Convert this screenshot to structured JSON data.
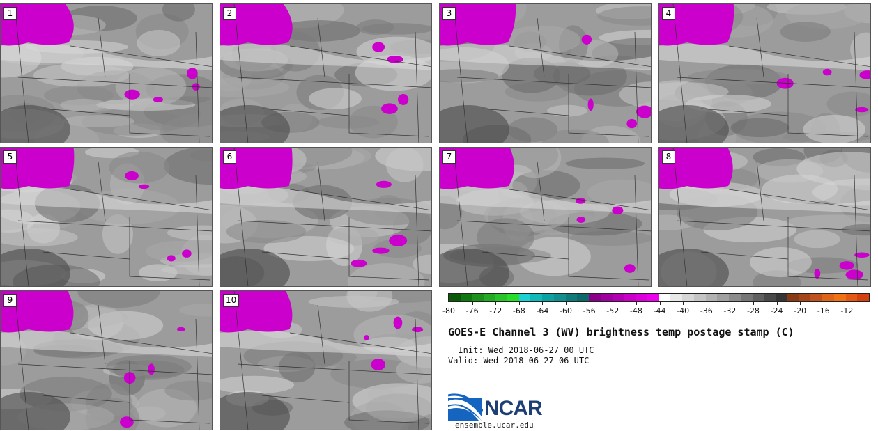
{
  "panels": [
    {
      "label": "1"
    },
    {
      "label": "2"
    },
    {
      "label": "3"
    },
    {
      "label": "4"
    },
    {
      "label": "5"
    },
    {
      "label": "6"
    },
    {
      "label": "7"
    },
    {
      "label": "8"
    },
    {
      "label": "9"
    },
    {
      "label": "10"
    }
  ],
  "colorbar": {
    "colors": [
      "#0a5a0a",
      "#117811",
      "#1c921c",
      "#23ab23",
      "#29c429",
      "#27dd27",
      "#1bd2d2",
      "#12b9b9",
      "#0ca2a2",
      "#0f8f8f",
      "#0f7a7a",
      "#0e6a6a",
      "#8a008a",
      "#a000a0",
      "#b400b4",
      "#c800c8",
      "#dc00dc",
      "#ee00ee",
      "#ffffff",
      "#e8e8e8",
      "#d6d6d6",
      "#c4c4c4",
      "#b2b2b2",
      "#a0a0a0",
      "#8c8c8c",
      "#767676",
      "#606060",
      "#4a4a4a",
      "#363636",
      "#8a3b16",
      "#a5451a",
      "#c0521e",
      "#dc6519",
      "#f07214",
      "#e55a12",
      "#d64110"
    ],
    "tick_labels": [
      "-80",
      "-76",
      "-72",
      "-68",
      "-64",
      "-60",
      "-56",
      "-52",
      "-48",
      "-44",
      "-40",
      "-36",
      "-32",
      "-28",
      "-24",
      "-20",
      "-16",
      "-12"
    ]
  },
  "title": "GOES-E Channel 3 (WV) brightness temp postage stamp (C)",
  "init": "  Init: Wed 2018-06-27 00 UTC",
  "valid": "Valid: Wed 2018-06-27 06 UTC",
  "logo": {
    "name": "NCAR",
    "url": "ensemble.ucar.edu"
  }
}
